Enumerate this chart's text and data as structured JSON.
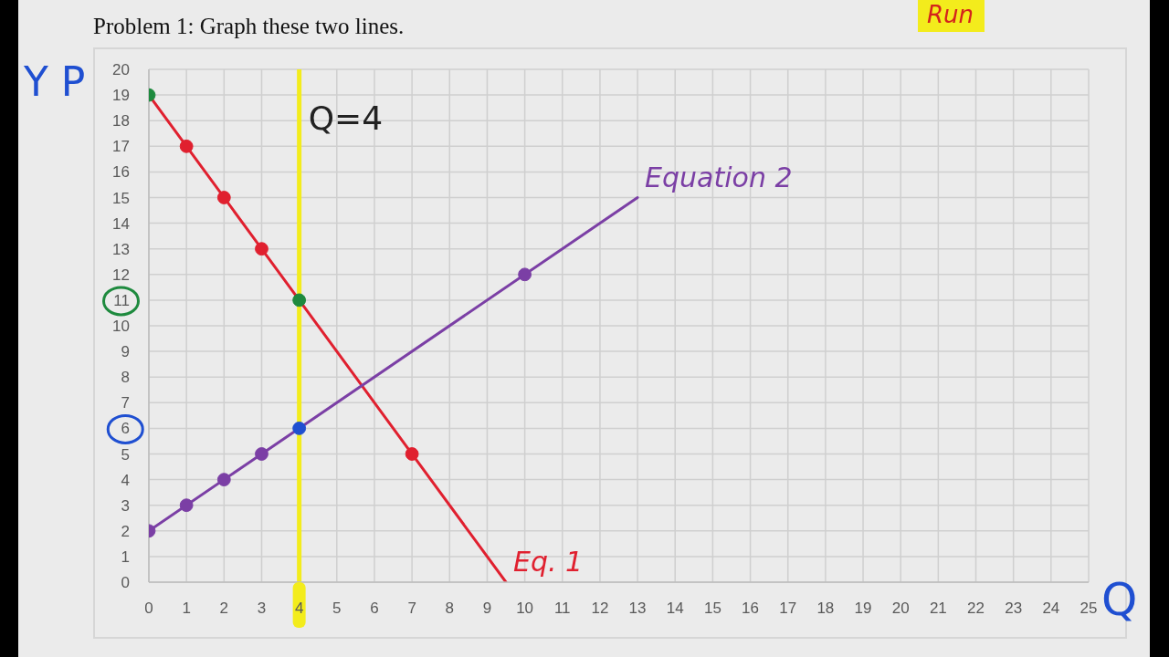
{
  "chart_data": {
    "type": "line",
    "title": "Problem 1: Graph these two lines.",
    "xlabel": "Q",
    "ylabel": "Y P",
    "annotations": [
      "Run"
    ],
    "series": [
      {
        "name": "Eq. 1",
        "color": "#e0202f",
        "x": [
          0,
          9.5
        ],
        "values": [
          19,
          0
        ],
        "marker": "none"
      },
      {
        "name": "Equation 2",
        "color": "#7b3fa5",
        "x": [
          0,
          13
        ],
        "values": [
          2,
          15
        ],
        "marker": "none"
      },
      {
        "type": "scatter",
        "color": "#e0202f",
        "x": [
          1,
          2,
          3,
          7
        ],
        "values": [
          17,
          15,
          13,
          5
        ]
      },
      {
        "type": "scatter",
        "color": "#1e8a3e",
        "x": [
          0,
          4
        ],
        "values": [
          19,
          11
        ]
      },
      {
        "type": "scatter",
        "color": "#7b3fa5",
        "x": [
          0,
          1,
          2,
          3,
          10
        ],
        "values": [
          2,
          3,
          4,
          5,
          12
        ]
      },
      {
        "type": "scatter",
        "color": "#1f4fd1",
        "x": [
          4
        ],
        "values": [
          6
        ]
      }
    ],
    "ref_lines": [
      {
        "axis": "x",
        "value": 4,
        "label": "Q=4",
        "color": "#f3ec1c"
      }
    ],
    "xlim": [
      0,
      25
    ],
    "xticks": [
      0,
      1,
      2,
      3,
      4,
      5,
      6,
      7,
      8,
      9,
      10,
      11,
      12,
      13,
      14,
      15,
      16,
      17,
      18,
      19,
      20,
      21,
      22,
      23,
      24,
      25
    ],
    "ylim": [
      0,
      20
    ],
    "yticks": [
      0,
      1,
      2,
      3,
      4,
      5,
      6,
      7,
      8,
      9,
      10,
      11,
      12,
      13,
      14,
      15,
      16,
      17,
      18,
      19,
      20
    ],
    "grid": true,
    "marker": "circle"
  }
}
